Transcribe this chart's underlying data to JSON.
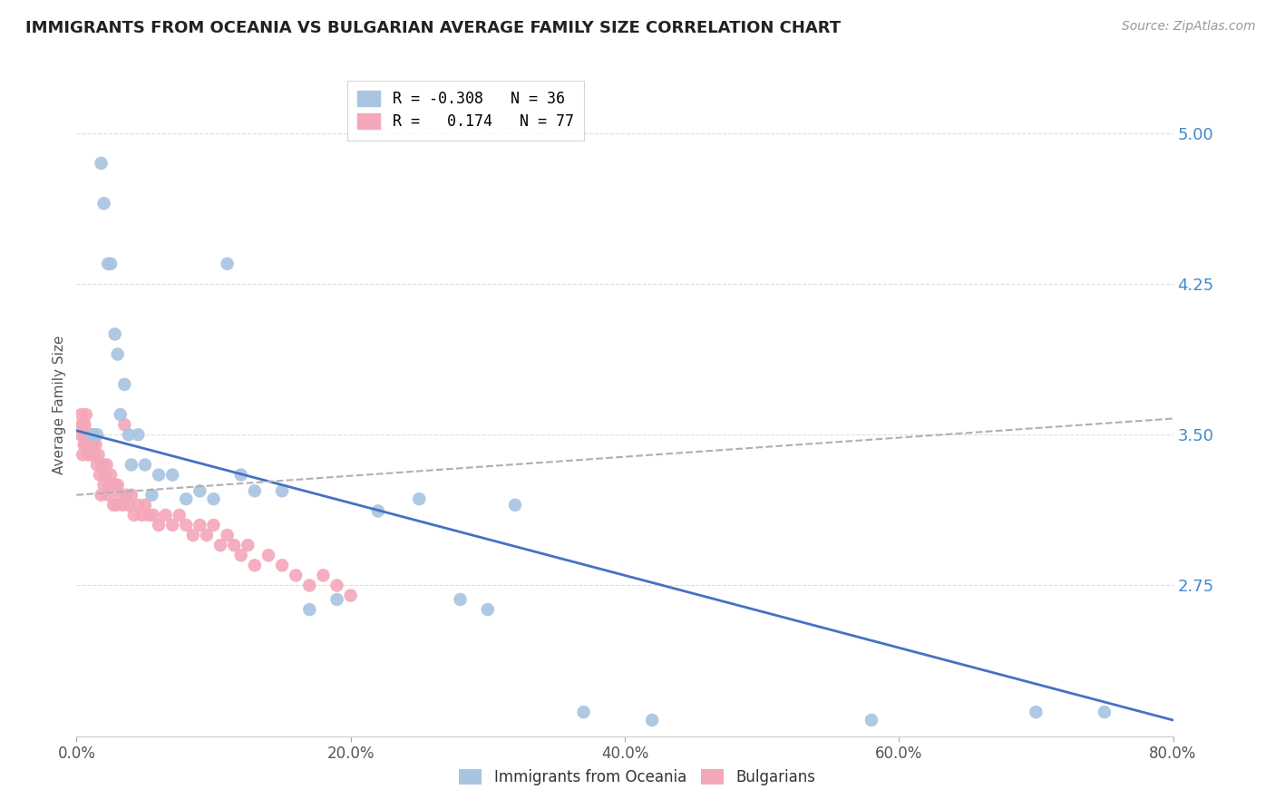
{
  "title": "IMMIGRANTS FROM OCEANIA VS BULGARIAN AVERAGE FAMILY SIZE CORRELATION CHART",
  "source": "Source: ZipAtlas.com",
  "ylabel": "Average Family Size",
  "series": [
    {
      "label": "Immigrants from Oceania",
      "color": "#a8c4e0",
      "R": "-0.308",
      "N": "36",
      "x": [
        1.2,
        1.5,
        1.8,
        2.0,
        2.3,
        2.5,
        2.8,
        3.0,
        3.2,
        3.5,
        3.8,
        4.0,
        4.5,
        5.0,
        5.5,
        6.0,
        7.0,
        8.0,
        9.0,
        10.0,
        11.0,
        12.0,
        13.0,
        15.0,
        17.0,
        19.0,
        22.0,
        25.0,
        28.0,
        30.0,
        32.0,
        70.0,
        37.0,
        42.0,
        75.0,
        58.0
      ],
      "y": [
        3.5,
        3.5,
        4.85,
        4.65,
        4.35,
        4.35,
        4.0,
        3.9,
        3.6,
        3.75,
        3.5,
        3.35,
        3.5,
        3.35,
        3.2,
        3.3,
        3.3,
        3.18,
        3.22,
        3.18,
        4.35,
        3.3,
        3.22,
        3.22,
        2.63,
        2.68,
        3.12,
        3.18,
        2.68,
        2.63,
        3.15,
        2.12,
        2.12,
        2.08,
        2.12,
        2.08
      ]
    },
    {
      "label": "Bulgarians",
      "color": "#f4a7b9",
      "R": "0.174",
      "N": "77",
      "x": [
        0.3,
        0.4,
        0.45,
        0.5,
        0.55,
        0.6,
        0.65,
        0.7,
        0.75,
        0.8,
        0.85,
        0.9,
        0.95,
        1.0,
        1.05,
        1.1,
        1.15,
        1.2,
        1.25,
        1.3,
        1.4,
        1.5,
        1.6,
        1.7,
        1.8,
        1.9,
        2.0,
        2.1,
        2.2,
        2.3,
        2.4,
        2.5,
        2.6,
        2.7,
        2.8,
        2.9,
        3.0,
        3.2,
        3.4,
        3.6,
        3.8,
        4.0,
        4.2,
        4.5,
        4.8,
        5.0,
        5.3,
        5.6,
        6.0,
        6.5,
        7.0,
        7.5,
        8.0,
        8.5,
        9.0,
        9.5,
        10.0,
        10.5,
        11.0,
        11.5,
        12.0,
        12.5,
        13.0,
        14.0,
        15.0,
        16.0,
        17.0,
        18.0,
        19.0,
        20.0,
        0.35,
        0.5,
        0.6,
        0.7,
        1.0,
        2.5,
        3.5
      ],
      "y": [
        3.5,
        3.55,
        3.4,
        3.5,
        3.45,
        3.5,
        3.5,
        3.45,
        3.5,
        3.45,
        3.4,
        3.5,
        3.45,
        3.45,
        3.5,
        3.4,
        3.45,
        3.45,
        3.5,
        3.4,
        3.45,
        3.35,
        3.4,
        3.3,
        3.2,
        3.35,
        3.25,
        3.3,
        3.35,
        3.2,
        3.25,
        3.3,
        3.25,
        3.15,
        3.25,
        3.15,
        3.25,
        3.2,
        3.15,
        3.2,
        3.15,
        3.2,
        3.1,
        3.15,
        3.1,
        3.15,
        3.1,
        3.1,
        3.05,
        3.1,
        3.05,
        3.1,
        3.05,
        3.0,
        3.05,
        3.0,
        3.05,
        2.95,
        3.0,
        2.95,
        2.9,
        2.95,
        2.85,
        2.9,
        2.85,
        2.8,
        2.75,
        2.8,
        2.75,
        2.7,
        3.6,
        3.55,
        3.55,
        3.6,
        3.5,
        3.25,
        3.55
      ]
    }
  ],
  "trend_blue": {
    "x_start": 0.0,
    "x_end": 80.0,
    "y_start": 3.52,
    "y_end": 2.08,
    "color": "#4472c4",
    "lw": 2.0,
    "style": "solid"
  },
  "trend_pink": {
    "x_start": 0.0,
    "x_end": 80.0,
    "y_start": 3.2,
    "y_end": 3.58,
    "color": "#b0b0b0",
    "lw": 1.5,
    "style": "dashed"
  },
  "xlim": [
    0.0,
    80.0
  ],
  "ylim": [
    2.0,
    5.3
  ],
  "yticks": [
    2.75,
    3.5,
    4.25,
    5.0
  ],
  "xticks": [
    0.0,
    20.0,
    40.0,
    60.0,
    80.0
  ],
  "xtick_labels": [
    "0.0%",
    "20.0%",
    "40.0%",
    "60.0%",
    "80.0%"
  ],
  "ytick_color": "#4488cc",
  "grid_color": "#dddddd",
  "background_color": "#ffffff",
  "title_fontsize": 13,
  "axis_label_fontsize": 11
}
